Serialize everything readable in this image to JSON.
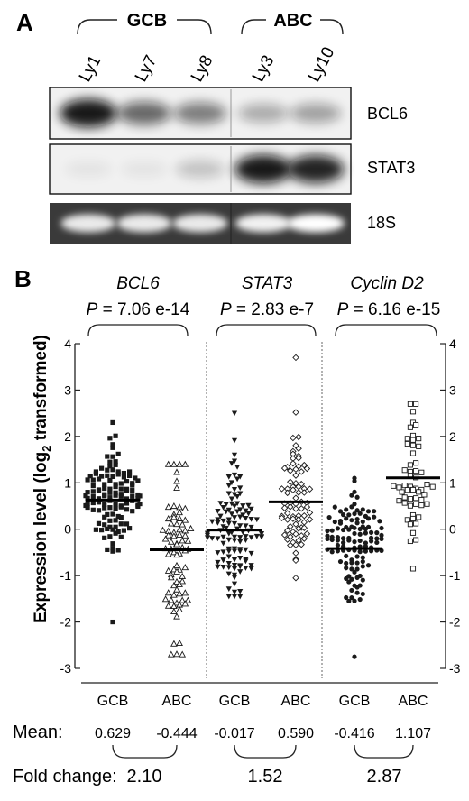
{
  "panel_a": {
    "label": "A",
    "group_labels": [
      "GCB",
      "ABC"
    ],
    "lanes": [
      "Ly1",
      "Ly7",
      "Ly8",
      "Ly3",
      "Ly10"
    ],
    "blots": [
      {
        "name": "BCL6",
        "intensity": [
          0.95,
          0.6,
          0.5,
          0.3,
          0.35
        ],
        "tone": "dark"
      },
      {
        "name": "STAT3",
        "intensity": [
          0.05,
          0.05,
          0.2,
          0.95,
          0.9
        ],
        "tone": "dark"
      },
      {
        "name": "18S",
        "intensity": [
          0.75,
          0.75,
          0.75,
          0.85,
          1.0
        ],
        "tone": "glow"
      }
    ]
  },
  "panel_b": {
    "label": "B",
    "ylabel_main": "Expression level (log",
    "ylabel_sub": "2",
    "ylabel_end": " transformed)",
    "mean_label": "Mean:",
    "fold_label": "Fold change:",
    "colors": {
      "marker": "#1a1a1a",
      "divider": "#666666"
    }
  },
  "chart_data": {
    "type": "scatter",
    "ylim": [
      -3,
      4
    ],
    "yticks": [
      "-3",
      "-2",
      "-1",
      "0",
      "1",
      "2",
      "3",
      "4"
    ],
    "genes": [
      {
        "name": "BCL6",
        "p_prefix": "P",
        "p_value": " = 7.06 e-14",
        "fold_change": "2.10",
        "groups": [
          {
            "name": "GCB",
            "marker": "filled-square",
            "mean": 0.629,
            "mean_text": "0.629",
            "n": 120,
            "min": -2.0,
            "max": 2.3,
            "sd": 0.55
          },
          {
            "name": "ABC",
            "marker": "open-triangle",
            "mean": -0.444,
            "mean_text": "-0.444",
            "n": 80,
            "min": -2.7,
            "max": 1.4,
            "sd": 0.95
          }
        ]
      },
      {
        "name": "STAT3",
        "p_prefix": "P",
        "p_value": " = 2.83 e-7",
        "fold_change": "1.52",
        "groups": [
          {
            "name": "GCB",
            "marker": "filled-triangle-down",
            "mean": -0.017,
            "mean_text": "-0.017",
            "n": 120,
            "min": -1.45,
            "max": 2.5,
            "sd": 0.7
          },
          {
            "name": "ABC",
            "marker": "open-diamond",
            "mean": 0.59,
            "mean_text": "0.590",
            "n": 80,
            "min": -1.05,
            "max": 3.7,
            "sd": 0.75
          }
        ]
      },
      {
        "name": "Cyclin D2",
        "p_prefix": "P",
        "p_value": " = 6.16 e-15",
        "fold_change": "2.87",
        "groups": [
          {
            "name": "GCB",
            "marker": "filled-circle",
            "mean": -0.416,
            "mean_text": "-0.416",
            "n": 120,
            "min": -2.75,
            "max": 1.1,
            "sd": 0.6
          },
          {
            "name": "ABC",
            "marker": "open-square",
            "mean": 1.107,
            "mean_text": "1.107",
            "n": 55,
            "min": -0.85,
            "max": 2.7,
            "sd": 0.8
          }
        ]
      }
    ]
  }
}
